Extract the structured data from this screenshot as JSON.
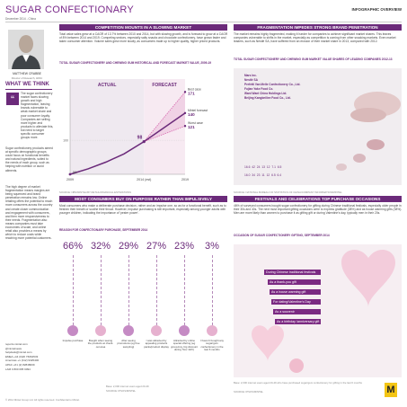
{
  "header": {
    "title": "SUGAR CONFECTIONARY",
    "right": "INFOGRAPHIC OVERVIEW",
    "date": "December 2014 - China"
  },
  "author": {
    "name": "MATTHEW CRABBE",
    "role": "Director of Research, APAC"
  },
  "wtw": {
    "heading": "WHAT WE THINK",
    "p1": "The sugar confectionery market faces slowing growth and high fragmentation, leaving brands vulnerable to weak market share and poor consumer loyalty. Companies are selling more higher-end products to alleviate this, but need to target specific consumer groups more.",
    "p2": "Sugar confectionery products aimed at specific demographic groups could focus on functional benefits and natural ingredients, suited to the needs of each group, such as helping with nutrition or avoid ailments.",
    "p3": "The high degree of market fragmentation means margins are being squeezed and brand penetration remains low. Online retailing offers the potential to reach more consumers across the country and create closer communication and engagement with consumers, and then more responsiveness to their needs. Fragmentation also means companies must take economies of scale, and online retail also provides a means by which to reduce costs while reaching more potential customers."
  },
  "contact": {
    "l1": "reports.mintel.com",
    "l2": "@mintelnews",
    "l3": "helpdesk@mintel.com",
    "l4": "EMEA +44 (0)20 76064533",
    "l5": "Americas +1 (312) 9325400",
    "l6": "APAC +61 (2) 82848009",
    "l7": "LAM 0 800 095 9094",
    "copyright": "© 2014 Mintel Group Ltd. All rights reserved. Confidential to Mintel."
  },
  "s1": {
    "title": "COMPETITION MOUNTS IN A SLOWING MARKET",
    "body": "Total value sales grew at a CAGR of 13.7% between 2010 and 2014, but with slowing growth, and is forecast to grow at a CAGR of 8% between 2014 and 2019. Competing sectors, especially salty snacks and chocolate confectionery, have grown faster and taken consumer attention. Volume sales grew more slowly, as consumers trade up to higher quality, higher priced products.",
    "chart_title": "TOTAL SUGAR CONFECTIONERY AND CHEWING GUM HISTORICAL AND FORECAST MARKET VALUE, 2009-19",
    "source": "SOURCE: NBS/MINTEL/BY RETAIL/FINANCIAL ESTIMATIONS"
  },
  "s2": {
    "title": "FRAGMENTATION IMPEDES STRONG BRAND PENETRATION",
    "body": "The market remains highly fragmented, making it harder for companies to achieve significant market shares. This leaves companies vulnerable to shifts in the market, especially as competition is coming from other snacking markets. Even market leaders, such as Nestlé SA, have suffered from an erosion of their market share in 2013, compared with 2012.",
    "chart_title": "TOTAL SUGAR CONFECTIONERY AND CHEWING GUM MARKET VALUE SHARES OF LEADING COMPANIES 2012-13",
    "companies": [
      "Mars Inc.",
      "Nestlé SA",
      "Perfetti Van Melle Confectionery Co., Ltd.",
      "Fujian Yake Food Co.",
      "Want Want China Holdings Ltd.",
      "Beijing Kangbeiliee Food Co., Ltd."
    ],
    "shares": [
      {
        "a": "16.6",
        "b": "42",
        "c": "24",
        "d": "13",
        "e": "12",
        "f": "7.1",
        "g": "6.5"
      },
      {
        "a": "16.0",
        "b": "34",
        "c": "23",
        "d": "11",
        "e": "12",
        "f": "6.5",
        "g": "6.4"
      }
    ],
    "source": "SOURCE: NATIONAL BUREAU OF STATISTICS OF CHINA/COMPANY INFORMATION/MINTEL"
  },
  "s3": {
    "title": "MOST CONSUMERS BUY ON PURPOSE RATHER THAN IMPULSIVELY",
    "body": "Most consumers who make a deliberate purchase decision, rather and an impulse one, so as for a functional benefit, such as to freshen their breath or soothe their throat. However, impulse purchasing is still important, especially among younger adults with younger children, indicating the importance of 'pester power'.",
    "chart_title": "REASON FOR CONFECTIONARY PURCHASE, SEPTEMBER 2014",
    "items": [
      {
        "pct": "66%",
        "label": "Impulse purchase"
      },
      {
        "pct": "32%",
        "label": "Bought when seeing the products at check-out area"
      },
      {
        "pct": "29%",
        "label": "After seeing promotions (eg free sampling)"
      },
      {
        "pct": "27%",
        "label": "I was attracted by appealing products packs/product display"
      },
      {
        "pct": "23%",
        "label": "Attracted by online special offering (eg group-buy, big discount during 'Nov 11th')"
      },
      {
        "pct": "3%",
        "label": "I haven't bought any sugar/gum confectionery in the last 6 months"
      }
    ],
    "base": "Base: 2,000 internet users aged 20-49",
    "source": "SOURCE: IPSOS/MINTEL"
  },
  "s4": {
    "title": "FESTIVALS AND CELEBRATIONS TOP PURCHASE OCCASIONS",
    "body": "46% of surveyed consumers bought sugar confectionery for gifting during Chinese traditional festivals, especially older people in their 30s and 40s. The next most important gifting occasions were to express gratitude (38%) and as house warming gifts (38%). Men are more likely than women to purchase it as gifting gift or during Valentine's day, typically men in their 20s.",
    "chart_title": "OCCASION OF SUGAR CONFECTIONERY GIFTING, SEPTEMBER 2014",
    "occasions": [
      "During Chinese traditional festivals",
      "As a thank-you gift",
      "As a house warming gift",
      "For dating/Valentine's Day",
      "As a souvenir",
      "As a birthday /anniversary gift"
    ],
    "base": "Base: 2,000 internet users aged 20-49 who have purchased sugar/gum confectionery for gifting in the last 6 months",
    "source": "SOURCE: IPSOS/MINTEL"
  },
  "chart_data": {
    "type": "line",
    "title": "TOTAL SUGAR CONFECTIONERY AND CHEWING GUM HISTORICAL AND FORECAST MARKET VALUE, 2009-19",
    "x": [
      "2009",
      "2014 (est)",
      "2019"
    ],
    "ylim": [
      50,
      190
    ],
    "segments": [
      "ACTUAL",
      "FORECAST"
    ],
    "series": [
      {
        "name": "Actual",
        "values": [
          50,
          98,
          null
        ]
      },
      {
        "name": "Best case",
        "values": [
          null,
          98,
          171
        ]
      },
      {
        "name": "Mintel forecast",
        "values": [
          null,
          98,
          140
        ]
      },
      {
        "name": "Worst case",
        "values": [
          null,
          98,
          121
        ]
      }
    ],
    "start_label": "50",
    "mid_label": "98",
    "y_tick": "100",
    "colors": {
      "actual": "#6b2a7a",
      "forecast": "#d86ab0",
      "band": "#eecfe3"
    }
  },
  "labels": {
    "best_case": "Best case",
    "best_val": "171",
    "mintel": "Mintel forecast",
    "mintel_val": "140",
    "worst_case": "Worst case",
    "worst_val": "121"
  }
}
